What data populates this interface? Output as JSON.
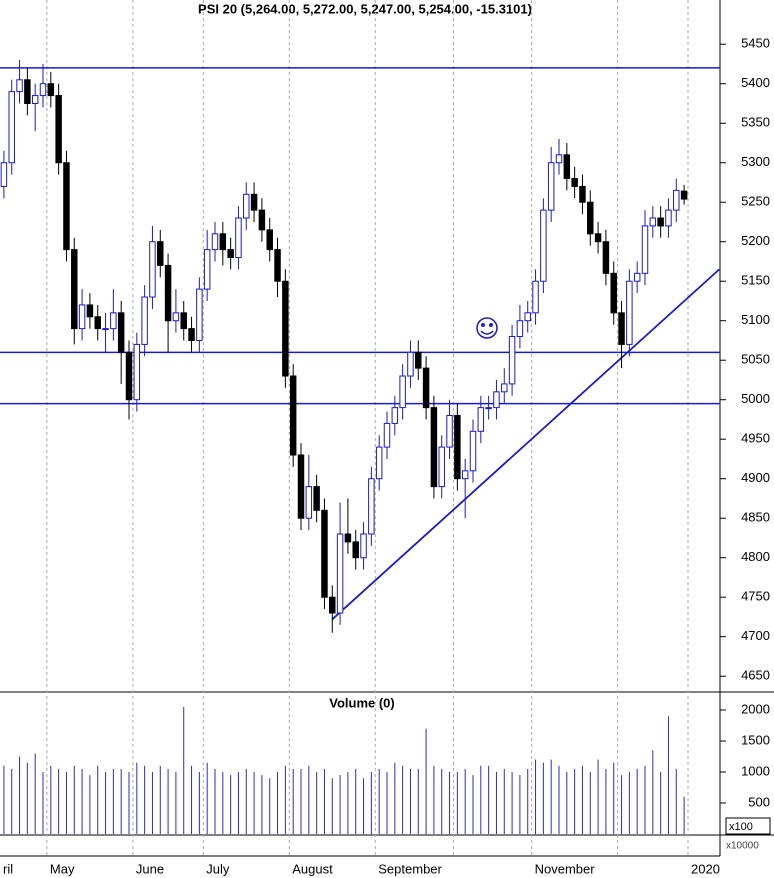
{
  "chart_data": [
    {
      "type": "candlestick",
      "title": "PSI 20 (5,264.00, 5,272.00, 5,247.00, 5,254.00, -15.3101)",
      "categories": [
        "ril",
        null,
        null,
        null,
        null,
        null,
        "May",
        null,
        null,
        null,
        null,
        null,
        null,
        null,
        null,
        null,
        null,
        "June",
        null,
        null,
        null,
        null,
        null,
        null,
        null,
        null,
        "July",
        null,
        null,
        null,
        null,
        null,
        null,
        null,
        null,
        null,
        null,
        "August",
        null,
        null,
        null,
        null,
        null,
        null,
        null,
        null,
        null,
        null,
        "September",
        null,
        null,
        null,
        null,
        null,
        null,
        null,
        null,
        null,
        null,
        null,
        null,
        null,
        null,
        null,
        null,
        null,
        null,
        null,
        "November",
        null,
        null,
        null,
        null,
        null,
        null,
        null,
        null,
        null,
        null,
        null,
        null,
        null,
        null,
        null,
        null,
        null,
        null,
        null,
        "2020"
      ],
      "vgrid": [
        6,
        17,
        26,
        37,
        48,
        58,
        68,
        79,
        88
      ],
      "open": [
        5270,
        5300,
        5390,
        5405,
        5375,
        5385,
        5400,
        5385,
        5300,
        5190,
        5090,
        5120,
        5105,
        5090,
        5090,
        5110,
        5060,
        5000,
        5070,
        5130,
        5200,
        5170,
        5100,
        5110,
        5090,
        5075,
        5140,
        5190,
        5210,
        5190,
        5180,
        5230,
        5260,
        5240,
        5215,
        5190,
        5150,
        5030,
        4930,
        4850,
        4890,
        4860,
        4750,
        4730,
        4830,
        4820,
        4800,
        4830,
        4900,
        4940,
        4970,
        4990,
        5030,
        5060,
        5040,
        4990,
        4890,
        4940,
        4980,
        4900,
        4910,
        4960,
        4990,
        4990,
        5010,
        5020,
        5080,
        5100,
        5110,
        5150,
        5240,
        5300,
        5310,
        5280,
        5270,
        5250,
        5210,
        5200,
        5160,
        5110,
        5070,
        5150,
        5160,
        5220,
        5230,
        5220,
        5240,
        5264,
        null
      ],
      "high": [
        5315,
        5405,
        5430,
        5420,
        5400,
        5425,
        5415,
        5400,
        5315,
        5205,
        5140,
        5135,
        5120,
        5110,
        5140,
        5125,
        5075,
        5085,
        5145,
        5220,
        5215,
        5185,
        5140,
        5125,
        5105,
        5155,
        5215,
        5225,
        5225,
        5205,
        5245,
        5275,
        5275,
        5255,
        5230,
        5205,
        5165,
        5045,
        4945,
        4930,
        4905,
        4875,
        4765,
        4870,
        4875,
        4835,
        4845,
        4915,
        4955,
        4985,
        5005,
        5045,
        5075,
        5075,
        5055,
        5005,
        4955,
        5000,
        4995,
        4925,
        4975,
        5005,
        5005,
        5025,
        5040,
        5095,
        5120,
        5125,
        5165,
        5255,
        5320,
        5330,
        5325,
        5295,
        5285,
        5265,
        5225,
        5215,
        5175,
        5125,
        5165,
        5175,
        5240,
        5245,
        5245,
        5255,
        5280,
        5272,
        null
      ],
      "low": [
        5255,
        5285,
        5375,
        5360,
        5340,
        5370,
        5370,
        5285,
        5175,
        5070,
        5075,
        5090,
        5075,
        5060,
        5075,
        5020,
        4975,
        4985,
        5055,
        5115,
        5155,
        5060,
        5085,
        5075,
        5060,
        5060,
        5125,
        5175,
        5170,
        5165,
        5165,
        5215,
        5225,
        5200,
        5175,
        5130,
        5015,
        4915,
        4835,
        4835,
        4845,
        4735,
        4705,
        4715,
        4805,
        4785,
        4785,
        4815,
        4885,
        4925,
        4955,
        4975,
        5015,
        5025,
        4975,
        4875,
        4875,
        4925,
        4885,
        4850,
        4895,
        4945,
        4975,
        4975,
        4995,
        5005,
        5065,
        5085,
        5095,
        5135,
        5225,
        5285,
        5265,
        5255,
        5235,
        5195,
        5185,
        5145,
        5095,
        5040,
        5055,
        5135,
        5145,
        5205,
        5205,
        5205,
        5225,
        5247,
        null
      ],
      "close": [
        5300,
        5390,
        5405,
        5375,
        5385,
        5400,
        5385,
        5300,
        5190,
        5090,
        5120,
        5105,
        5090,
        5090,
        5110,
        5060,
        5000,
        5070,
        5130,
        5200,
        5170,
        5100,
        5110,
        5090,
        5075,
        5140,
        5190,
        5210,
        5190,
        5180,
        5230,
        5260,
        5240,
        5215,
        5190,
        5150,
        5030,
        4930,
        4850,
        4890,
        4860,
        4750,
        4730,
        4830,
        4820,
        4800,
        4830,
        4900,
        4940,
        4970,
        4990,
        5030,
        5060,
        5040,
        4990,
        4890,
        4940,
        4980,
        4900,
        4910,
        4960,
        4990,
        4990,
        5010,
        5020,
        5080,
        5100,
        5110,
        5150,
        5240,
        5300,
        5310,
        5280,
        5270,
        5250,
        5210,
        5200,
        5160,
        5110,
        5070,
        5150,
        5160,
        5220,
        5230,
        5220,
        5240,
        5265,
        5254,
        null
      ],
      "up_color": "#1a1ad0",
      "down_color": "#000000",
      "ylim": [
        4630,
        5506
      ],
      "yticks": [
        4650,
        4700,
        4750,
        4800,
        4850,
        4900,
        4950,
        5000,
        5050,
        5100,
        5150,
        5200,
        5250,
        5300,
        5350,
        5400,
        5450
      ],
      "hlines": [
        5420,
        5060,
        4995
      ],
      "trendline": {
        "x": [
          42,
          91.5
        ],
        "y": [
          4722,
          5165
        ]
      },
      "line_color": "#1a1ad0"
    },
    {
      "type": "volume",
      "title": "Volume (0)",
      "unit": "x100",
      "unit2": "x10000",
      "values": [
        1100,
        1050,
        1250,
        1150,
        1300,
        1000,
        1100,
        1050,
        1000,
        1100,
        1050,
        950,
        1100,
        1000,
        1050,
        1050,
        1000,
        1150,
        1100,
        1000,
        1100,
        1050,
        1000,
        2050,
        1100,
        1000,
        1150,
        1050,
        1000,
        950,
        1000,
        1050,
        1000,
        950,
        900,
        1000,
        1100,
        1050,
        1050,
        1100,
        1000,
        1050,
        900,
        950,
        1000,
        1050,
        900,
        1000,
        1050,
        1000,
        1150,
        1100,
        1050,
        1050,
        1700,
        1100,
        1050,
        1000,
        1000,
        1050,
        950,
        1100,
        1100,
        1000,
        1050,
        1000,
        950,
        1050,
        1200,
        1150,
        1200,
        1100,
        1000,
        1050,
        1100,
        1000,
        1200,
        1050,
        1150,
        950,
        1000,
        1050,
        1100,
        1350,
        1000,
        1900,
        1050,
        600,
        null
      ],
      "color": "#2a2ad0",
      "ylim": [
        0,
        2290
      ],
      "yticks": [
        500,
        1000,
        1500,
        2000
      ]
    }
  ]
}
